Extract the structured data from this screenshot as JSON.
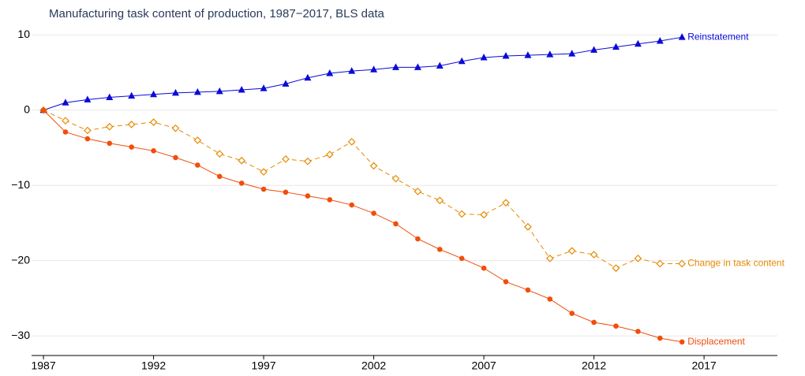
{
  "chart_data": {
    "type": "line",
    "title": "Manufacturing task content of production, 1987−2017, BLS data",
    "x": [
      1987,
      1988,
      1989,
      1990,
      1991,
      1992,
      1993,
      1994,
      1995,
      1996,
      1997,
      1998,
      1999,
      2000,
      2001,
      2002,
      2003,
      2004,
      2005,
      2006,
      2007,
      2008,
      2009,
      2010,
      2011,
      2012,
      2013,
      2014,
      2015,
      2016
    ],
    "series": [
      {
        "name": "Reinstatement",
        "color": "#0a0ad8",
        "marker": "triangle",
        "dash": false,
        "values": [
          0,
          1.0,
          1.4,
          1.7,
          1.9,
          2.1,
          2.3,
          2.4,
          2.5,
          2.7,
          2.9,
          3.5,
          4.3,
          4.9,
          5.2,
          5.4,
          5.7,
          5.7,
          5.9,
          6.5,
          7.0,
          7.2,
          7.3,
          7.4,
          7.5,
          8.0,
          8.4,
          8.8,
          9.2,
          9.7
        ]
      },
      {
        "name": "Change in task content",
        "color": "#e68a00",
        "marker": "diamond",
        "dash": true,
        "values": [
          0,
          -1.4,
          -2.7,
          -2.2,
          -1.9,
          -1.6,
          -2.4,
          -4.0,
          -5.8,
          -6.7,
          -8.2,
          -6.5,
          -6.8,
          -5.9,
          -4.2,
          -7.4,
          -9.1,
          -10.8,
          -12.0,
          -13.8,
          -13.9,
          -12.3,
          -15.5,
          -19.7,
          -18.7,
          -19.2,
          -21.0,
          -19.7,
          -20.4,
          -20.4
        ]
      },
      {
        "name": "Displacement",
        "color": "#f04e0c",
        "marker": "circle",
        "dash": false,
        "values": [
          0,
          -2.9,
          -3.8,
          -4.4,
          -4.9,
          -5.4,
          -6.3,
          -7.3,
          -8.8,
          -9.7,
          -10.5,
          -10.9,
          -11.4,
          -11.9,
          -12.6,
          -13.7,
          -15.1,
          -17.1,
          -18.5,
          -19.7,
          -21.0,
          -22.8,
          -23.9,
          -25.1,
          -27.0,
          -28.2,
          -28.7,
          -29.4,
          -30.3,
          -30.8
        ]
      }
    ],
    "xlim": [
      1986.46,
      2020.33
    ],
    "xticks": [
      1987,
      1992,
      1997,
      2002,
      2007,
      2012,
      2017
    ],
    "ylim": [
      -32.5,
      11.5
    ],
    "yticks": [
      {
        "value": -30,
        "label": "−30"
      },
      {
        "value": -20,
        "label": "−20"
      },
      {
        "value": -10,
        "label": "−10"
      },
      0,
      10
    ],
    "grid": true
  }
}
